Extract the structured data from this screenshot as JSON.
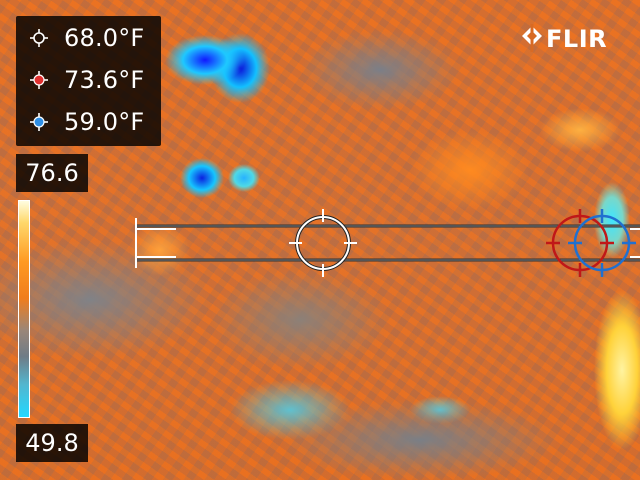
{
  "app": {
    "brand": "FLIR",
    "brand_icon": "flir-logo-icon"
  },
  "readouts": [
    {
      "name": "box-average",
      "icon": "crosshair-white-icon",
      "color": "#ffffff",
      "value": "68.0°F"
    },
    {
      "name": "hot-spot",
      "icon": "crosshair-red-icon",
      "color": "#e03030",
      "value": "73.6°F"
    },
    {
      "name": "cold-spot",
      "icon": "crosshair-blue-icon",
      "color": "#2f8fe6",
      "value": "59.0°F"
    }
  ],
  "scale": {
    "max": "76.6",
    "min": "49.8",
    "palette": "iron"
  },
  "markers": {
    "center_color": "#ffffff",
    "hot_color": "#c01818",
    "cold_color": "#2070d0"
  }
}
